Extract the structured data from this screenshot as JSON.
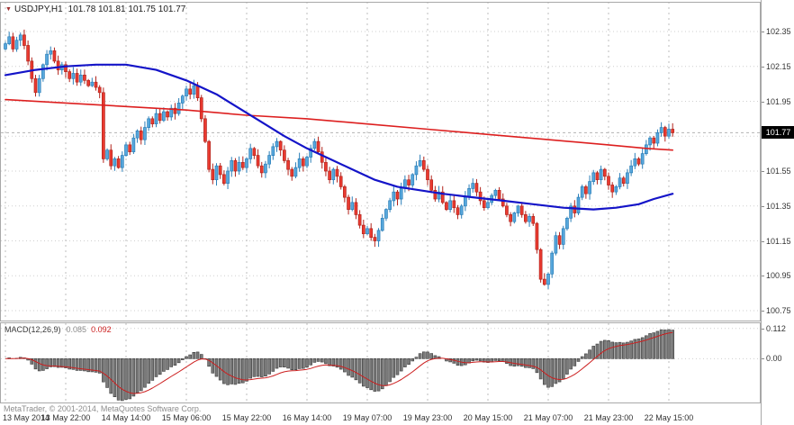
{
  "window": {
    "title_symbol": "USDJPY,H1",
    "title_ohlc": "101.78 101.81 101.75 101.77"
  },
  "price_tag": "101.77",
  "macd_panel": {
    "label": "MACD(12,26,9)",
    "value_main": "0.085",
    "value_signal": "0.092",
    "axis_max_label": "0.112",
    "axis_zero_label": "0.00"
  },
  "footer": {
    "copyright": "MetaTrader, © 2001-2014, MetaQuotes Software Corp."
  },
  "price_axis": {
    "labels": [
      "102.35",
      "102.15",
      "101.95",
      "101.75",
      "101.55",
      "101.35",
      "101.15",
      "100.95",
      "100.75"
    ]
  },
  "time_axis": {
    "labels": [
      "13 May 2014",
      "13 May 22:00",
      "14 May 14:00",
      "15 May 06:00",
      "15 May 22:00",
      "16 May 14:00",
      "19 May 07:00",
      "19 May 23:00",
      "20 May 15:00",
      "21 May 07:00",
      "21 May 23:00",
      "22 May 15:00"
    ]
  },
  "colors": {
    "candle_up_fill": "#57a7dc",
    "candle_up_stroke": "#2b7fb8",
    "candle_down_fill": "#ea3a30",
    "candle_down_stroke": "#b2241c",
    "ma_fast_red": "#dd1f1f",
    "ma_slow_blue": "#1414c8",
    "macd_bar_fill": "#7a7a7a",
    "macd_bar_stroke": "#3c3c3c",
    "macd_signal": "#cc1f1f",
    "grid": "#cfcfcf",
    "vgrid": "#bdbdbd",
    "current_price_line": "#b3b3b3",
    "pane_border": "#a8a8a8",
    "tag_bg": "#000000"
  },
  "chart_data": {
    "type": "candlestick",
    "symbol": "USDJPY",
    "timeframe": "H1",
    "ohlc_current": {
      "open": 101.78,
      "high": 101.81,
      "low": 101.75,
      "close": 101.77
    },
    "current_price": 101.77,
    "price_gridlines": [
      102.35,
      102.15,
      101.95,
      101.75,
      101.55,
      101.35,
      101.15,
      100.95,
      100.75
    ],
    "ylim": [
      100.7,
      102.45
    ],
    "tick_indices": [
      0,
      16,
      32,
      48,
      64,
      80,
      96,
      112,
      128,
      144,
      160,
      176
    ],
    "closes": [
      102.28,
      102.32,
      102.25,
      102.3,
      102.33,
      102.27,
      102.18,
      102.08,
      102.0,
      102.08,
      102.16,
      102.22,
      102.24,
      102.18,
      102.13,
      102.16,
      102.12,
      102.08,
      102.11,
      102.06,
      102.1,
      102.07,
      102.04,
      102.06,
      102.03,
      102.0,
      101.62,
      101.67,
      101.58,
      101.62,
      101.57,
      101.64,
      101.7,
      101.66,
      101.74,
      101.78,
      101.73,
      101.8,
      101.85,
      101.82,
      101.88,
      101.84,
      101.89,
      101.86,
      101.91,
      101.88,
      101.94,
      101.98,
      102.02,
      101.99,
      102.04,
      101.97,
      101.85,
      101.72,
      101.56,
      101.5,
      101.58,
      101.53,
      101.48,
      101.55,
      101.61,
      101.55,
      101.6,
      101.57,
      101.62,
      101.68,
      101.64,
      101.58,
      101.54,
      101.59,
      101.64,
      101.69,
      101.72,
      101.67,
      101.61,
      101.56,
      101.52,
      101.57,
      101.62,
      101.58,
      101.63,
      101.68,
      101.72,
      101.66,
      101.6,
      101.55,
      101.5,
      101.56,
      101.52,
      101.46,
      101.4,
      101.33,
      101.37,
      101.3,
      101.24,
      101.19,
      101.22,
      101.17,
      101.15,
      101.21,
      101.28,
      101.33,
      101.38,
      101.43,
      101.39,
      101.45,
      101.5,
      101.47,
      101.53,
      101.58,
      101.61,
      101.56,
      101.5,
      101.44,
      101.39,
      101.43,
      101.37,
      101.33,
      101.38,
      101.34,
      101.3,
      101.35,
      101.4,
      101.45,
      101.48,
      101.43,
      101.38,
      101.34,
      101.37,
      101.41,
      101.44,
      101.39,
      101.35,
      101.3,
      101.26,
      101.31,
      101.35,
      101.3,
      101.26,
      101.29,
      101.25,
      101.1,
      100.93,
      100.9,
      100.96,
      101.08,
      101.18,
      101.13,
      101.22,
      101.28,
      101.35,
      101.31,
      101.4,
      101.46,
      101.42,
      101.49,
      101.54,
      101.5,
      101.56,
      101.52,
      101.47,
      101.43,
      101.46,
      101.51,
      101.48,
      101.54,
      101.58,
      101.62,
      101.59,
      101.65,
      101.7,
      101.74,
      101.71,
      101.77,
      101.8,
      101.75,
      101.79,
      101.77
    ],
    "ma_fast_red_points": [
      [
        0,
        101.96
      ],
      [
        16,
        101.94
      ],
      [
        32,
        101.92
      ],
      [
        48,
        101.9
      ],
      [
        64,
        101.87
      ],
      [
        80,
        101.85
      ],
      [
        96,
        101.82
      ],
      [
        112,
        101.79
      ],
      [
        128,
        101.76
      ],
      [
        144,
        101.73
      ],
      [
        160,
        101.7
      ],
      [
        170,
        101.68
      ],
      [
        177,
        101.67
      ]
    ],
    "ma_slow_blue_points": [
      [
        0,
        102.1
      ],
      [
        8,
        102.13
      ],
      [
        16,
        102.15
      ],
      [
        24,
        102.16
      ],
      [
        32,
        102.16
      ],
      [
        40,
        102.13
      ],
      [
        48,
        102.07
      ],
      [
        56,
        101.99
      ],
      [
        62,
        101.91
      ],
      [
        68,
        101.83
      ],
      [
        74,
        101.75
      ],
      [
        80,
        101.68
      ],
      [
        86,
        101.62
      ],
      [
        92,
        101.56
      ],
      [
        98,
        101.5
      ],
      [
        104,
        101.46
      ],
      [
        110,
        101.44
      ],
      [
        116,
        101.42
      ],
      [
        124,
        101.4
      ],
      [
        132,
        101.38
      ],
      [
        140,
        101.36
      ],
      [
        148,
        101.34
      ],
      [
        156,
        101.33
      ],
      [
        162,
        101.34
      ],
      [
        168,
        101.36
      ],
      [
        172,
        101.39
      ],
      [
        177,
        101.42
      ]
    ],
    "macd": {
      "fast": 12,
      "slow": 26,
      "signal": 9,
      "current_main": 0.085,
      "current_signal": 0.092,
      "axis_max": 0.112
    }
  }
}
